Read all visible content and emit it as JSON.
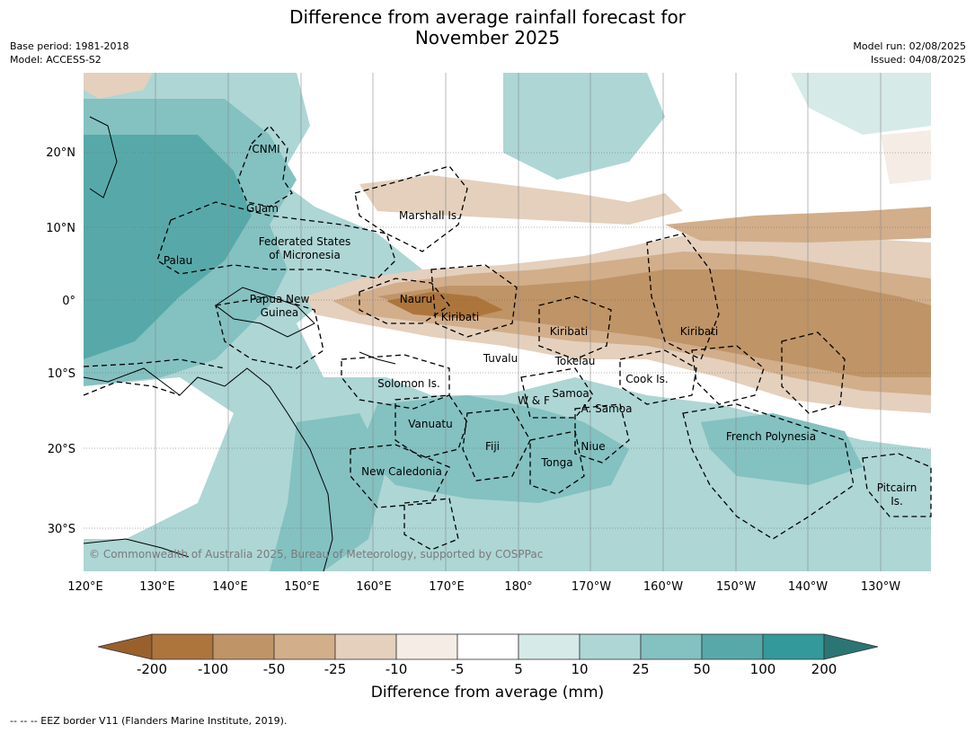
{
  "title_line1": "Difference from average rainfall forecast for",
  "title_line2": "November 2025",
  "meta_left": {
    "base_period": "Base period: 1981-2018",
    "model": "Model: ACCESS-S2"
  },
  "meta_right": {
    "model_run": "Model run: 02/08/2025",
    "issued": "Issued: 04/08/2025"
  },
  "map": {
    "lat_labels": [
      "20°N",
      "10°N",
      "0°",
      "10°S",
      "20°S",
      "30°S"
    ],
    "lon_labels": [
      "120°E",
      "130°E",
      "140°E",
      "150°E",
      "160°E",
      "170°E",
      "180°",
      "170°W",
      "160°W",
      "150°W",
      "140°W",
      "130°W"
    ],
    "regions": [
      "CNMI",
      "Guam",
      "Marshall Is.",
      "Federated States",
      "of Micronesia",
      "Palau",
      "Papua New",
      "Guinea",
      "Nauru",
      "Kiribati",
      "Kiribati",
      "Kiribati",
      "Tuvalu",
      "Tokelau",
      "Cook Is.",
      "Solomon Is.",
      "Samoa",
      "W & F",
      "A. Samoa",
      "Vanuatu",
      "Fiji",
      "Niue",
      "Tonga",
      "French Polynesia",
      "New Caledonia",
      "Pitcairn",
      "Is."
    ],
    "copyright": "© Commonwealth of Australia 2025, Bureau of Meteorology, supported by COSPPac"
  },
  "colorbar": {
    "ticks": [
      "-200",
      "-100",
      "-50",
      "-25",
      "-10",
      "-5",
      "5",
      "10",
      "25",
      "50",
      "100",
      "200"
    ],
    "colors": [
      "#9a602c",
      "#ad753c",
      "#bf9467",
      "#d2ae8b",
      "#e4d0bd",
      "#f4ece5",
      "#ffffff",
      "#d6eae8",
      "#add6d5",
      "#84c1c1",
      "#57a9a9",
      "#33999a",
      "#2b7574"
    ],
    "label": "Difference from average (mm)"
  },
  "footnote": "--  --  -- EEZ border V11 (Flanders Marine Institute, 2019)."
}
